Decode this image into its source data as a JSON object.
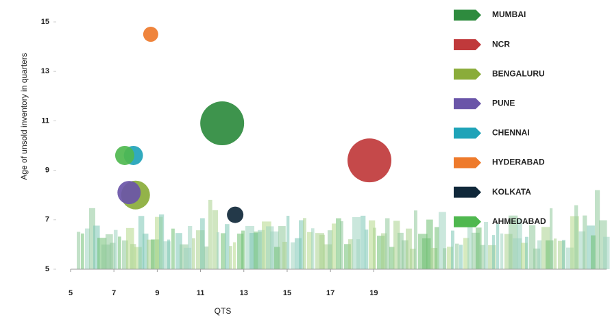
{
  "chart_data": {
    "type": "bubble",
    "y_label": "Age of unsold inventory in quarters",
    "x_label": "QTS",
    "xlim": [
      5,
      29.75
    ],
    "xticks": [
      5,
      7,
      9,
      11,
      13,
      15,
      17,
      19
    ],
    "ylim": [
      5,
      15
    ],
    "yticks": [
      5,
      7,
      9,
      11,
      13,
      15
    ],
    "series": [
      {
        "name": "MUMBAI",
        "color": "#2e8b3e",
        "x": [
          12.0
        ],
        "values": [
          10.9
        ],
        "sizes": [
          32
        ]
      },
      {
        "name": "NCR",
        "color": "#c0393b",
        "x": [
          18.8
        ],
        "values": [
          9.4
        ],
        "sizes": [
          32
        ]
      },
      {
        "name": "BENGALURU",
        "color": "#8aac3a",
        "x": [
          8.0
        ],
        "values": [
          8.0
        ],
        "sizes": [
          21
        ]
      },
      {
        "name": "PUNE",
        "color": "#6a55a8",
        "x": [
          7.7
        ],
        "values": [
          8.1
        ],
        "sizes": [
          17
        ]
      },
      {
        "name": "CHENNAI",
        "color": "#1fa3b8",
        "x": [
          7.9
        ],
        "values": [
          9.6
        ],
        "sizes": [
          14
        ]
      },
      {
        "name": "HYDERABAD",
        "color": "#ee7a2b",
        "x": [
          8.7
        ],
        "values": [
          14.5
        ],
        "sizes": [
          11
        ]
      },
      {
        "name": "KOLKATA",
        "color": "#10283a",
        "x": [
          12.6
        ],
        "values": [
          7.2
        ],
        "sizes": [
          12
        ]
      },
      {
        "name": "AHMEDABAD",
        "color": "#4fb84f",
        "x": [
          7.5
        ],
        "values": [
          9.6
        ],
        "sizes": [
          14
        ]
      }
    ]
  }
}
